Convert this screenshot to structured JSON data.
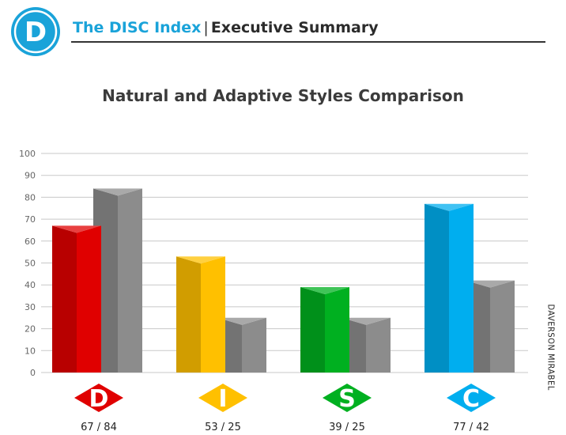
{
  "header": {
    "logo_letter": "D",
    "brand": "The DISC Index",
    "separator": "|",
    "section": "Executive Summary"
  },
  "side_label": "DAVERSON MIRABEL",
  "colors": {
    "brand_blue": "#1aa3d9",
    "D": "#e00000",
    "I": "#ffc000",
    "S": "#00b020",
    "C": "#00aeef",
    "adaptive_gray": "#8c8c8c"
  },
  "chart_data": {
    "type": "bar",
    "title": "Natural and Adaptive Styles Comparison",
    "categories": [
      "D",
      "I",
      "S",
      "C"
    ],
    "series": [
      {
        "values": [
          67,
          53,
          39,
          77
        ]
      },
      {
        "values": [
          84,
          25,
          25,
          42
        ]
      }
    ],
    "category_labels": [
      "67 / 84",
      "53 / 25",
      "39 / 25",
      "77 / 42"
    ],
    "ylim": [
      0,
      100
    ],
    "yticks": [
      0,
      10,
      20,
      30,
      40,
      50,
      60,
      70,
      80,
      90,
      100
    ],
    "grid": true
  }
}
